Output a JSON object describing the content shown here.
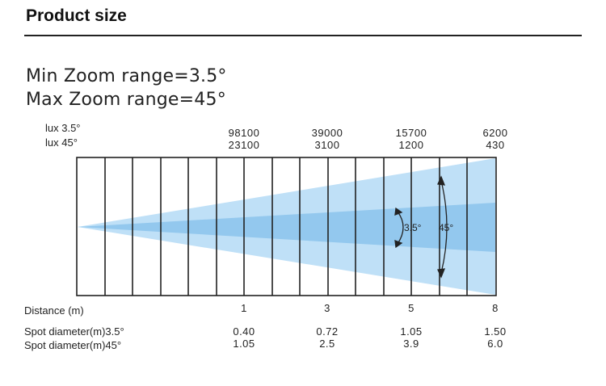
{
  "header": {
    "title": "Product size"
  },
  "zoom": {
    "min": "Min Zoom range=3.5°",
    "max": "Max Zoom range=45°"
  },
  "lux_labels": {
    "lux35": "lux 3.5°",
    "lux45": "lux 45°"
  },
  "columns": [
    {
      "lux35": "98100",
      "lux45": "23100",
      "distance": "1",
      "spot35": "0.40",
      "spot45": "1.05"
    },
    {
      "lux35": "39000",
      "lux45": "3100",
      "distance": "3",
      "spot35": "0.72",
      "spot45": "2.5"
    },
    {
      "lux35": "15700",
      "lux45": "1200",
      "distance": "5",
      "spot35": "1.05",
      "spot45": "3.9"
    },
    {
      "lux35": "6200",
      "lux45": "430",
      "distance": "8",
      "spot35": "1.50",
      "spot45": "6.0"
    }
  ],
  "row_labels": {
    "distance": "Distance (m)",
    "spot35": "Spot diameter(m)3.5°",
    "spot45": "Spot diameter(m)45°"
  },
  "beam_labels": {
    "narrow": "3.5°",
    "wide": "45°"
  },
  "colors": {
    "beam_outer": "#bfe0f7",
    "beam_inner": "#93c8ee",
    "lines": "#222222"
  }
}
